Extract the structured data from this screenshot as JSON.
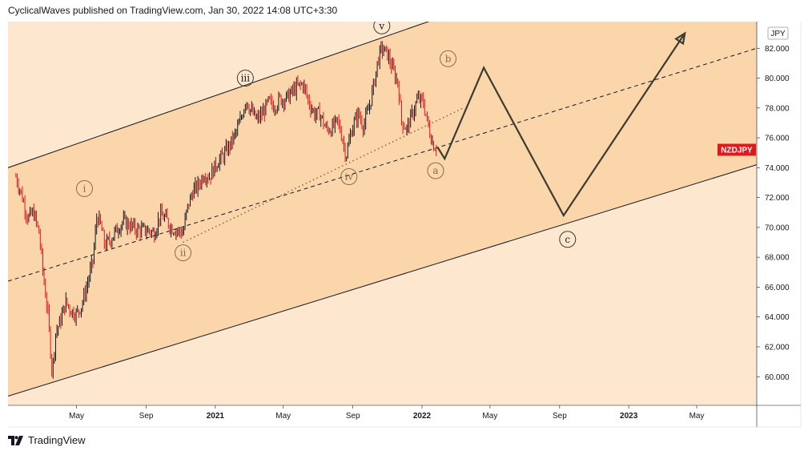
{
  "header": {
    "publisher_line": "CyclicalWaves published on TradingView.com, Jan 30, 2022 14:08 UTC+3:30"
  },
  "footer": {
    "brand": "TradingView"
  },
  "colors": {
    "band_outer": "#fde7cf",
    "band_inner": "#fbd6ab",
    "price_up": "#131722",
    "price_down": "#e4141c",
    "projection": "#3b3b32",
    "badge_bg": "#e0191c",
    "label_brown": "#8a6a48"
  },
  "chart_data": {
    "type": "line",
    "symbol": "NZDJPY",
    "currency": "JPY",
    "ylim": [
      58.5,
      84.5
    ],
    "y_ticks": [
      "82.000",
      "80.000",
      "78.000",
      "76.000",
      "74.000",
      "72.000",
      "70.000",
      "68.000",
      "66.000",
      "64.000",
      "62.000",
      "60.000"
    ],
    "x_ticks": [
      {
        "label": "May",
        "date": "2020-05-01",
        "bold": false
      },
      {
        "label": "Sep",
        "date": "2020-09-01",
        "bold": false
      },
      {
        "label": "2021",
        "date": "2021-01-01",
        "bold": true
      },
      {
        "label": "May",
        "date": "2021-05-01",
        "bold": false
      },
      {
        "label": "Sep",
        "date": "2021-09-01",
        "bold": false
      },
      {
        "label": "2022",
        "date": "2022-01-01",
        "bold": true
      },
      {
        "label": "May",
        "date": "2022-05-01",
        "bold": false
      },
      {
        "label": "Sep",
        "date": "2022-09-01",
        "bold": false
      },
      {
        "label": "2023",
        "date": "2023-01-01",
        "bold": true
      },
      {
        "label": "May",
        "date": "2023-05-01",
        "bold": false
      }
    ],
    "last_price_badge": {
      "label": "NZDJPY",
      "value": 75.2
    },
    "price_series": [
      [
        "2020-01-15",
        73.4
      ],
      [
        "2020-01-25",
        72.2
      ],
      [
        "2020-02-05",
        70.6
      ],
      [
        "2020-02-15",
        71.0
      ],
      [
        "2020-02-25",
        69.6
      ],
      [
        "2020-03-05",
        66.2
      ],
      [
        "2020-03-12",
        64.0
      ],
      [
        "2020-03-19",
        60.2
      ],
      [
        "2020-03-25",
        62.9
      ],
      [
        "2020-04-03",
        63.8
      ],
      [
        "2020-04-12",
        65.0
      ],
      [
        "2020-04-22",
        64.4
      ],
      [
        "2020-05-01",
        64.2
      ],
      [
        "2020-05-10",
        64.8
      ],
      [
        "2020-05-20",
        66.2
      ],
      [
        "2020-05-30",
        67.8
      ],
      [
        "2020-06-06",
        70.8
      ],
      [
        "2020-06-12",
        70.2
      ],
      [
        "2020-06-20",
        68.8
      ],
      [
        "2020-06-30",
        69.2
      ],
      [
        "2020-07-10",
        69.8
      ],
      [
        "2020-07-22",
        70.4
      ],
      [
        "2020-08-01",
        70.2
      ],
      [
        "2020-08-12",
        69.9
      ],
      [
        "2020-08-25",
        69.8
      ],
      [
        "2020-09-05",
        69.8
      ],
      [
        "2020-09-15",
        69.6
      ],
      [
        "2020-09-25",
        70.8
      ],
      [
        "2020-10-05",
        70.6
      ],
      [
        "2020-10-15",
        70.0
      ],
      [
        "2020-10-25",
        69.8
      ],
      [
        "2020-11-05",
        69.6
      ],
      [
        "2020-11-12",
        71.2
      ],
      [
        "2020-11-22",
        72.4
      ],
      [
        "2020-12-02",
        72.8
      ],
      [
        "2020-12-12",
        73.6
      ],
      [
        "2020-12-22",
        73.4
      ],
      [
        "2021-01-05",
        74.4
      ],
      [
        "2021-01-15",
        74.8
      ],
      [
        "2021-01-25",
        75.4
      ],
      [
        "2021-02-05",
        76.2
      ],
      [
        "2021-02-15",
        77.2
      ],
      [
        "2021-02-24",
        78.6
      ],
      [
        "2021-03-05",
        77.8
      ],
      [
        "2021-03-15",
        77.2
      ],
      [
        "2021-03-25",
        77.6
      ],
      [
        "2021-04-05",
        78.4
      ],
      [
        "2021-04-15",
        78.1
      ],
      [
        "2021-04-25",
        78.6
      ],
      [
        "2021-05-05",
        78.6
      ],
      [
        "2021-05-15",
        79.0
      ],
      [
        "2021-05-25",
        79.4
      ],
      [
        "2021-06-05",
        79.6
      ],
      [
        "2021-06-15",
        78.4
      ],
      [
        "2021-06-25",
        77.6
      ],
      [
        "2021-07-05",
        77.6
      ],
      [
        "2021-07-15",
        76.6
      ],
      [
        "2021-07-25",
        76.6
      ],
      [
        "2021-08-05",
        77.1
      ],
      [
        "2021-08-12",
        76.2
      ],
      [
        "2021-08-20",
        74.8
      ],
      [
        "2021-08-30",
        76.6
      ],
      [
        "2021-09-10",
        77.6
      ],
      [
        "2021-09-20",
        76.8
      ],
      [
        "2021-09-30",
        78.1
      ],
      [
        "2021-10-08",
        79.6
      ],
      [
        "2021-10-15",
        81.2
      ],
      [
        "2021-10-22",
        82.0
      ],
      [
        "2021-11-01",
        81.6
      ],
      [
        "2021-11-10",
        80.6
      ],
      [
        "2021-11-20",
        79.6
      ],
      [
        "2021-11-26",
        77.1
      ],
      [
        "2021-12-05",
        76.6
      ],
      [
        "2021-12-15",
        77.6
      ],
      [
        "2021-12-24",
        78.6
      ],
      [
        "2022-01-03",
        78.4
      ],
      [
        "2022-01-12",
        76.8
      ],
      [
        "2022-01-20",
        75.6
      ],
      [
        "2022-01-28",
        75.2
      ]
    ],
    "projection_path": [
      [
        "2022-01-28",
        75.4
      ],
      [
        "2022-02-10",
        74.6
      ],
      [
        "2022-04-20",
        80.7
      ],
      [
        "2022-09-08",
        70.8
      ],
      [
        "2023-04-10",
        83.0
      ]
    ],
    "channel": {
      "upper": [
        [
          "2020-01-01",
          74.0
        ],
        [
          "2022-03-15",
          84.6
        ]
      ],
      "lower": [
        [
          "2020-01-01",
          58.7
        ],
        [
          "2023-08-15",
          74.2
        ]
      ],
      "mid": [
        [
          "2020-01-01",
          66.4
        ],
        [
          "2023-08-15",
          82.0
        ]
      ],
      "inner_dotted": [
        [
          "2020-11-05",
          69.0
        ],
        [
          "2022-03-15",
          78.0
        ]
      ]
    },
    "wave_labels": [
      {
        "text": "i",
        "date": "2020-05-15",
        "value": 72.6,
        "style": "brown"
      },
      {
        "text": "ii",
        "date": "2020-11-05",
        "value": 68.3,
        "style": "brown"
      },
      {
        "text": "iii",
        "date": "2021-02-23",
        "value": 80.0,
        "style": "dark"
      },
      {
        "text": "iv",
        "date": "2021-08-25",
        "value": 73.4,
        "style": "brown"
      },
      {
        "text": "v",
        "date": "2021-10-22",
        "value": 83.5,
        "style": "dark"
      },
      {
        "text": "b",
        "date": "2022-02-16",
        "value": 81.3,
        "style": "brown"
      },
      {
        "text": "a",
        "date": "2022-01-25",
        "value": 73.8,
        "style": "brown"
      },
      {
        "text": "c",
        "date": "2022-09-15",
        "value": 69.2,
        "style": "dark"
      }
    ]
  }
}
